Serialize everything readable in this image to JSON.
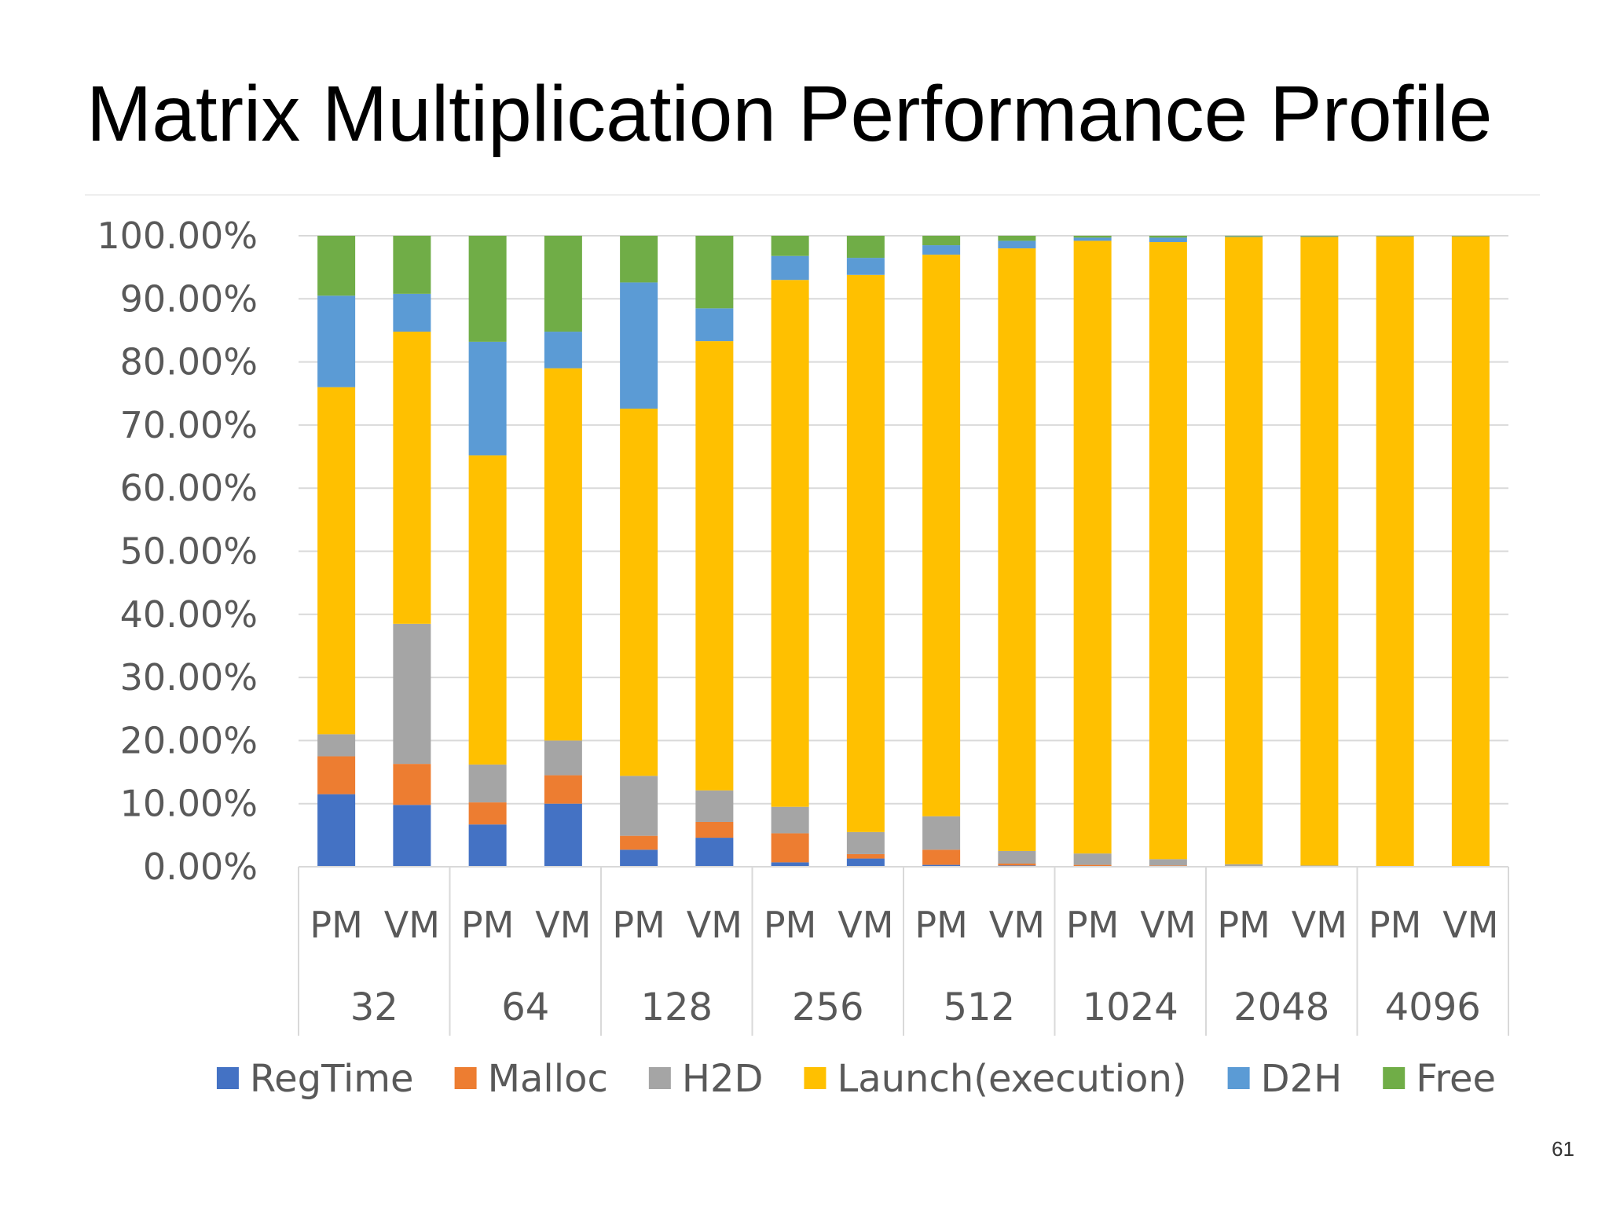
{
  "slide": {
    "title": "Matrix Multiplication Performance Profile",
    "page_number": "61"
  },
  "chart_data": {
    "type": "bar",
    "stacked": true,
    "title": "",
    "xlabel": "",
    "ylabel": "",
    "ylim": [
      0,
      100
    ],
    "y_ticks": [
      "0.00%",
      "10.00%",
      "20.00%",
      "30.00%",
      "40.00%",
      "50.00%",
      "60.00%",
      "70.00%",
      "80.00%",
      "90.00%",
      "100.00%"
    ],
    "grid": true,
    "legend_position": "bottom",
    "groups": [
      "32",
      "64",
      "128",
      "256",
      "512",
      "1024",
      "2048",
      "4096"
    ],
    "subcategories": [
      "PM",
      "VM"
    ],
    "categories": [
      "32 PM",
      "32 VM",
      "64 PM",
      "64 VM",
      "128 PM",
      "128 VM",
      "256 PM",
      "256 VM",
      "512 PM",
      "512 VM",
      "1024 PM",
      "1024 VM",
      "2048 PM",
      "2048 VM",
      "4096 PM",
      "4096 VM"
    ],
    "series": [
      {
        "name": "RegTime",
        "color": "#4472C4",
        "values": [
          11.5,
          9.8,
          6.7,
          10.0,
          2.7,
          4.6,
          0.7,
          1.3,
          0.3,
          0.2,
          0.1,
          0.1,
          0.05,
          0.03,
          0.02,
          0.01
        ]
      },
      {
        "name": "Malloc",
        "color": "#ED7D31",
        "values": [
          6.0,
          6.5,
          3.5,
          4.5,
          2.2,
          2.5,
          4.6,
          0.7,
          2.4,
          0.3,
          0.2,
          0.1,
          0.05,
          0.02,
          0.01,
          0.01
        ]
      },
      {
        "name": "H2D",
        "color": "#A5A5A5",
        "values": [
          3.5,
          22.2,
          6.0,
          5.5,
          9.5,
          5.0,
          4.2,
          3.5,
          5.3,
          2.0,
          1.8,
          1.0,
          0.3,
          0.15,
          0.07,
          0.05
        ]
      },
      {
        "name": "Launch(execution)",
        "color": "#FFC000",
        "values": [
          55.0,
          46.3,
          49.0,
          59.0,
          58.2,
          71.2,
          83.5,
          88.3,
          89.0,
          95.5,
          97.1,
          97.8,
          99.4,
          99.62,
          99.8,
          99.83
        ]
      },
      {
        "name": "D2H",
        "color": "#5B9BD5",
        "values": [
          14.5,
          6.0,
          18.0,
          5.8,
          20.0,
          5.2,
          3.8,
          2.7,
          1.5,
          1.2,
          0.5,
          0.7,
          0.1,
          0.1,
          0.05,
          0.05
        ]
      },
      {
        "name": "Free",
        "color": "#70AD47",
        "values": [
          9.5,
          9.2,
          16.8,
          15.2,
          7.4,
          11.5,
          3.2,
          3.5,
          1.5,
          0.8,
          0.3,
          0.3,
          0.1,
          0.08,
          0.05,
          0.05
        ]
      }
    ]
  }
}
